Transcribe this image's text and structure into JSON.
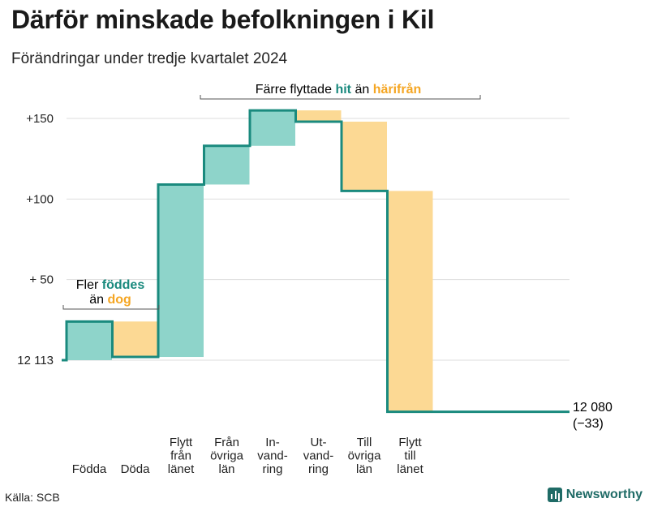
{
  "title": "Därför minskade befolkningen i Kil",
  "subtitle": "Förändringar under tredje kvartalet 2024",
  "source": "Källa: SCB",
  "brand": "Newsworthy",
  "colors": {
    "in": "#8ed4ca",
    "out": "#fcd994",
    "line": "#1a8a7e",
    "grid": "#dddddd",
    "bracket": "#555555"
  },
  "annotations": {
    "left": {
      "line1": "Fler",
      "hl1": "föddes",
      "line2": "än",
      "hl2": "dog"
    },
    "top": {
      "pre": "Färre flyttade",
      "hl1": "hit",
      "mid": "än",
      "hl2": "härifrån"
    }
  },
  "end_label": {
    "value": "12 080",
    "change": "(−33)"
  },
  "chart_data": {
    "type": "waterfall",
    "title": "Därför minskade befolkningen i Kil",
    "subtitle": "Förändringar under tredje kvartalet 2024",
    "start_value": 12113,
    "start_label": "12 113",
    "end_value": 12080,
    "y_ticks": [
      {
        "value": 150,
        "label": "+150"
      },
      {
        "value": 100,
        "label": "+100"
      },
      {
        "value": 50,
        "label": "+ 50"
      },
      {
        "value": 0,
        "label": "12 113"
      }
    ],
    "ylim": [
      -37,
      155
    ],
    "steps": [
      {
        "label": [
          "Födda"
        ],
        "delta": 24,
        "kind": "in"
      },
      {
        "label": [
          "Döda"
        ],
        "delta": -22,
        "kind": "out"
      },
      {
        "label": [
          "Flytt",
          "från",
          "länet"
        ],
        "delta": 107,
        "kind": "in"
      },
      {
        "label": [
          "Från",
          "övriga",
          "län"
        ],
        "delta": 24,
        "kind": "in"
      },
      {
        "label": [
          "In-",
          "vand-",
          "ring"
        ],
        "delta": 22,
        "kind": "in"
      },
      {
        "label": [
          "Ut-",
          "vand-",
          "ring"
        ],
        "delta": -7,
        "kind": "out"
      },
      {
        "label": [
          "Till",
          "övriga",
          "län"
        ],
        "delta": -43,
        "kind": "out"
      },
      {
        "label": [
          "Flytt",
          "till",
          "länet"
        ],
        "delta": -137,
        "kind": "out"
      }
    ]
  }
}
